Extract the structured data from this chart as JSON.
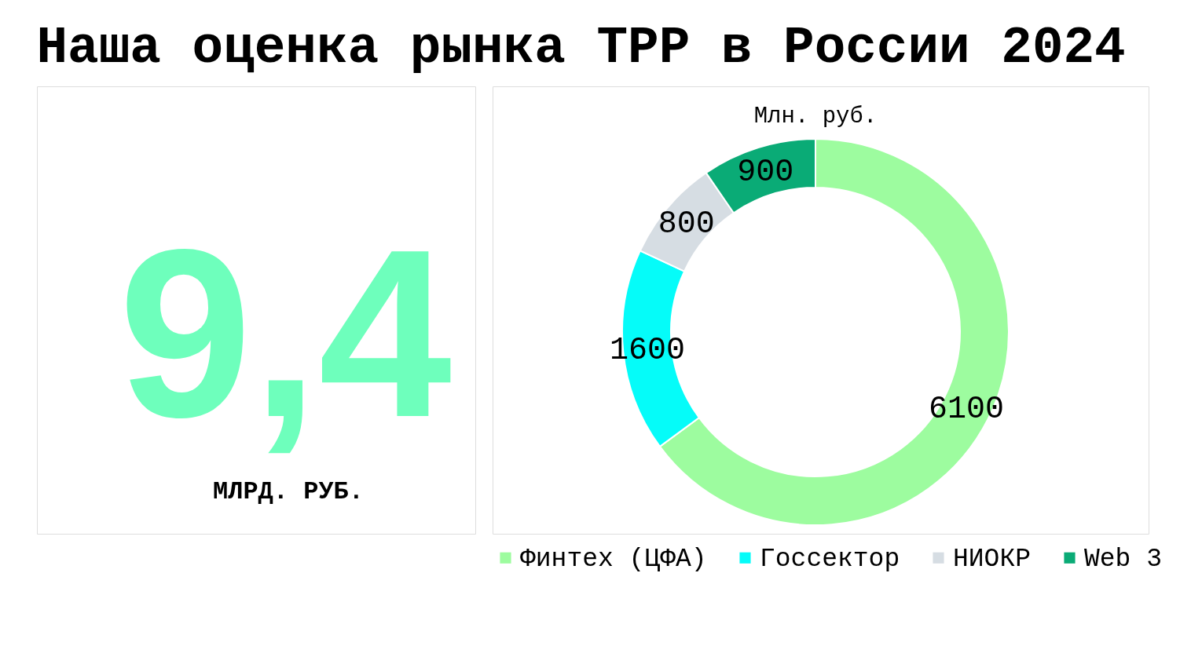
{
  "chart_data": [
    {
      "type": "other",
      "title": "Наша оценка рынка ТРР в России 2024",
      "annotations": [
        "9,4",
        "МЛРД. РУБ."
      ]
    },
    {
      "type": "donut",
      "title": "Млн. руб.",
      "categories": [
        "Финтех (ЦФА)",
        "Госсектор",
        "НИОКР",
        "Web 3"
      ],
      "values": [
        6100,
        1600,
        800,
        900
      ],
      "colors": [
        "#9dfc9f",
        "#05fcf9",
        "#d6dde3",
        "#0aab76"
      ],
      "data_labels": true,
      "legend": "bottom"
    }
  ]
}
